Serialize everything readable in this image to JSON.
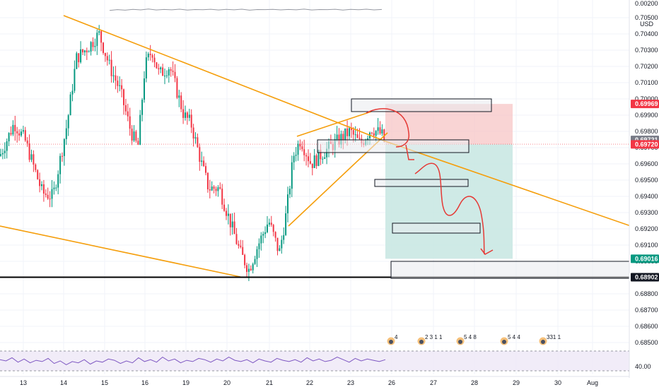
{
  "chart_data": {
    "type": "candlestick",
    "pair_currency": "USD",
    "price_axis": {
      "ticks": [
        "0.70500",
        "0.70400",
        "0.70300",
        "0.70200",
        "0.70100",
        "0.70000",
        "0.69900",
        "0.69800",
        "0.69700",
        "0.69600",
        "0.69500",
        "0.69400",
        "0.69300",
        "0.69200",
        "0.69100",
        "0.69000",
        "0.68900",
        "0.68800",
        "0.68700",
        "0.68600",
        "0.68500"
      ],
      "top_partial_label": "0.00200",
      "price_range": [
        0.6845,
        0.7063
      ]
    },
    "date_axis": {
      "labels": [
        "13",
        "14",
        "15",
        "16",
        "19",
        "20",
        "21",
        "22",
        "23",
        "26",
        "27",
        "28",
        "29",
        "30",
        "Aug"
      ]
    },
    "price_badges": [
      {
        "label": "0.69969",
        "price": 0.69969,
        "color": "#f23645"
      },
      {
        "label": "0.69721",
        "price": 0.69721,
        "color": "#787b86"
      },
      {
        "label": "0.69720",
        "price": 0.6972,
        "color": "#f23645"
      },
      {
        "label": "0.69016",
        "price": 0.69016,
        "color": "#089981"
      },
      {
        "label": "0.68902",
        "price": 0.68902,
        "color": "#131722"
      }
    ],
    "position_tool": {
      "entry": 0.6972,
      "stop": 0.69969,
      "target": 0.69016,
      "stop_fill": "#f7c6c6",
      "target_fill": "#c7e6e2"
    },
    "support_level": 0.68902,
    "rsi": {
      "label": "40.00",
      "values": [
        52,
        50,
        55,
        48,
        53,
        47,
        51,
        49,
        54,
        46,
        50,
        44,
        49,
        47,
        52,
        45,
        50,
        48,
        53,
        51,
        46,
        50,
        47,
        55,
        49,
        52,
        48,
        56,
        50,
        53,
        47,
        51,
        49,
        54,
        52,
        48,
        53,
        50,
        56,
        51,
        49,
        52,
        47,
        53,
        50,
        48,
        54,
        51,
        49,
        52,
        48,
        55,
        50,
        53,
        49,
        51,
        56,
        52,
        48,
        54,
        50,
        53,
        51,
        49,
        52
      ]
    },
    "volume_strip": {
      "values": [
        40,
        55,
        45,
        60,
        50,
        65,
        48,
        58,
        52,
        62,
        47,
        57,
        53,
        61,
        49,
        59,
        51,
        63,
        46,
        56,
        54,
        60,
        50,
        58,
        52,
        64,
        48,
        57,
        55,
        61,
        47,
        59,
        53,
        62,
        50,
        58
      ]
    },
    "event_markers": [
      "4",
      "2 3 1 1",
      "5 4 8",
      "5 4 4",
      "331 1"
    ],
    "colors": {
      "up": "#089981",
      "down": "#f23645",
      "trendline": "#f59e0b",
      "arrow": "#e53935",
      "grid": "#f0f3fa",
      "axis_text": "#131722",
      "rsi_line": "#7e57c2",
      "rsi_band": "#ede7f6"
    }
  }
}
